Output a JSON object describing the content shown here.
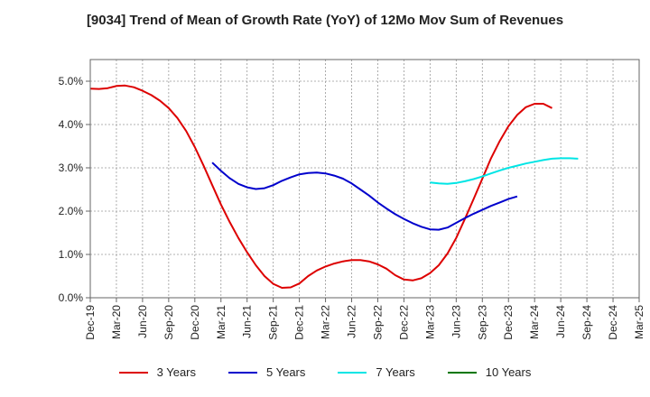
{
  "chart_data": {
    "type": "line",
    "title": "[9034]  Trend of Mean of Growth Rate (YoY) of 12Mo Mov Sum of Revenues",
    "xlabel": "",
    "ylabel": "",
    "ylim": [
      0,
      5.5
    ],
    "yticks": [
      "0.0%",
      "1.0%",
      "2.0%",
      "3.0%",
      "4.0%",
      "5.0%"
    ],
    "ytick_values": [
      0,
      1,
      2,
      3,
      4,
      5
    ],
    "grid": true,
    "legend_position": "bottom",
    "x_tick_labels": [
      "Dec-19",
      "Mar-20",
      "Jun-20",
      "Sep-20",
      "Dec-20",
      "Mar-21",
      "Jun-21",
      "Sep-21",
      "Dec-21",
      "Mar-22",
      "Jun-22",
      "Sep-22",
      "Dec-22",
      "Mar-23",
      "Jun-23",
      "Sep-23",
      "Dec-23",
      "Mar-24",
      "Jun-24",
      "Sep-24",
      "Dec-24",
      "Mar-25"
    ],
    "x_range_months": [
      0,
      63
    ],
    "series": [
      {
        "name": "3 Years",
        "color": "#dd0000",
        "points": [
          [
            0,
            4.83
          ],
          [
            1,
            4.82
          ],
          [
            2,
            4.84
          ],
          [
            3,
            4.89
          ],
          [
            4,
            4.9
          ],
          [
            5,
            4.86
          ],
          [
            6,
            4.78
          ],
          [
            7,
            4.68
          ],
          [
            8,
            4.55
          ],
          [
            9,
            4.38
          ],
          [
            10,
            4.15
          ],
          [
            11,
            3.85
          ],
          [
            12,
            3.48
          ],
          [
            13,
            3.05
          ],
          [
            14,
            2.6
          ],
          [
            15,
            2.15
          ],
          [
            16,
            1.75
          ],
          [
            17,
            1.38
          ],
          [
            18,
            1.05
          ],
          [
            19,
            0.75
          ],
          [
            20,
            0.5
          ],
          [
            21,
            0.32
          ],
          [
            22,
            0.23
          ],
          [
            23,
            0.24
          ],
          [
            24,
            0.33
          ],
          [
            25,
            0.5
          ],
          [
            26,
            0.63
          ],
          [
            27,
            0.72
          ],
          [
            28,
            0.79
          ],
          [
            29,
            0.84
          ],
          [
            30,
            0.87
          ],
          [
            31,
            0.87
          ],
          [
            32,
            0.84
          ],
          [
            33,
            0.77
          ],
          [
            34,
            0.67
          ],
          [
            35,
            0.52
          ],
          [
            36,
            0.42
          ],
          [
            37,
            0.4
          ],
          [
            38,
            0.45
          ],
          [
            39,
            0.57
          ],
          [
            40,
            0.75
          ],
          [
            41,
            1.02
          ],
          [
            42,
            1.38
          ],
          [
            43,
            1.82
          ],
          [
            44,
            2.28
          ],
          [
            45,
            2.75
          ],
          [
            46,
            3.22
          ],
          [
            47,
            3.62
          ],
          [
            48,
            3.96
          ],
          [
            49,
            4.22
          ],
          [
            50,
            4.4
          ],
          [
            51,
            4.48
          ],
          [
            52,
            4.48
          ],
          [
            53,
            4.38
          ]
        ]
      },
      {
        "name": "5 Years",
        "color": "#0000cc",
        "points": [
          [
            14,
            3.12
          ],
          [
            15,
            2.93
          ],
          [
            16,
            2.76
          ],
          [
            17,
            2.63
          ],
          [
            18,
            2.55
          ],
          [
            19,
            2.51
          ],
          [
            20,
            2.53
          ],
          [
            21,
            2.6
          ],
          [
            22,
            2.7
          ],
          [
            23,
            2.78
          ],
          [
            24,
            2.85
          ],
          [
            25,
            2.88
          ],
          [
            26,
            2.89
          ],
          [
            27,
            2.87
          ],
          [
            28,
            2.82
          ],
          [
            29,
            2.75
          ],
          [
            30,
            2.64
          ],
          [
            31,
            2.5
          ],
          [
            32,
            2.36
          ],
          [
            33,
            2.2
          ],
          [
            34,
            2.06
          ],
          [
            35,
            1.93
          ],
          [
            36,
            1.82
          ],
          [
            37,
            1.72
          ],
          [
            38,
            1.64
          ],
          [
            39,
            1.58
          ],
          [
            40,
            1.57
          ],
          [
            41,
            1.62
          ],
          [
            42,
            1.73
          ],
          [
            43,
            1.84
          ],
          [
            44,
            1.94
          ],
          [
            45,
            2.03
          ],
          [
            46,
            2.12
          ],
          [
            47,
            2.2
          ],
          [
            48,
            2.28
          ],
          [
            49,
            2.34
          ]
        ]
      },
      {
        "name": "7 Years",
        "color": "#00e5e5",
        "points": [
          [
            39,
            2.66
          ],
          [
            40,
            2.64
          ],
          [
            41,
            2.63
          ],
          [
            42,
            2.65
          ],
          [
            43,
            2.69
          ],
          [
            44,
            2.74
          ],
          [
            45,
            2.8
          ],
          [
            46,
            2.87
          ],
          [
            47,
            2.94
          ],
          [
            48,
            3.0
          ],
          [
            49,
            3.05
          ],
          [
            50,
            3.1
          ],
          [
            51,
            3.14
          ],
          [
            52,
            3.18
          ],
          [
            53,
            3.21
          ],
          [
            54,
            3.22
          ],
          [
            55,
            3.22
          ],
          [
            56,
            3.21
          ]
        ]
      },
      {
        "name": "10 Years",
        "color": "#007700",
        "points": []
      }
    ]
  }
}
